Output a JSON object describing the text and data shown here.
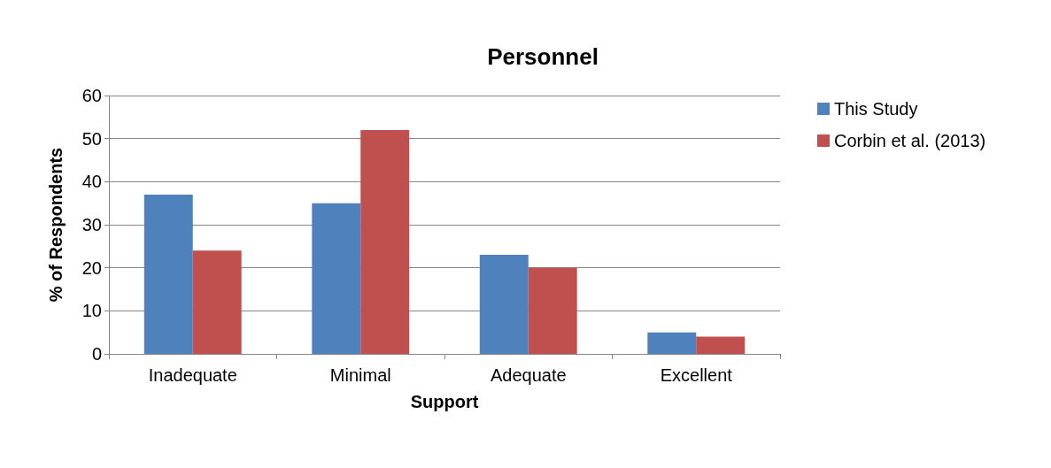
{
  "chart_data": {
    "type": "bar",
    "title": "Personnel",
    "xlabel": "Support",
    "ylabel": "% of Respondents",
    "categories": [
      "Inadequate",
      "Minimal",
      "Adequate",
      "Excellent"
    ],
    "series": [
      {
        "name": "This Study",
        "color": "#4f81bd",
        "values": [
          37,
          35,
          23,
          5
        ]
      },
      {
        "name": "Corbin et al. (2013)",
        "color": "#c0504d",
        "values": [
          24,
          52,
          20,
          4
        ]
      }
    ],
    "ylim": [
      0,
      60
    ],
    "yticks": [
      0,
      10,
      20,
      30,
      40,
      50,
      60
    ],
    "grid": "y",
    "legend": "right"
  }
}
